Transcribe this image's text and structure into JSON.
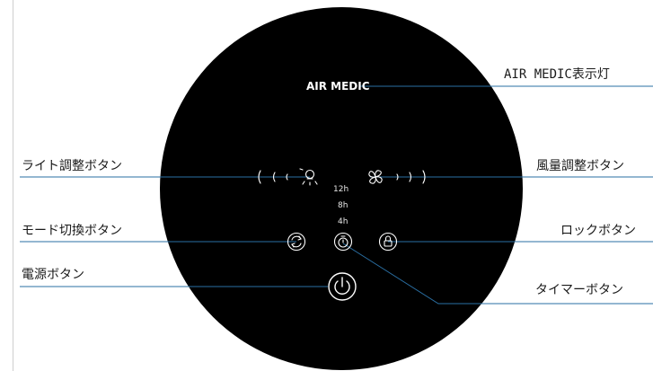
{
  "panel": {
    "brand": "AIR MEDIC",
    "timer_options": [
      "12h",
      "8h",
      "4h"
    ]
  },
  "callouts": {
    "air_medic_light": "AIR MEDIC表示灯",
    "light_button": "ライト調整ボタン",
    "fan_speed_button": "風量調整ボタン",
    "mode_button": "モード切換ボタン",
    "lock_button": "ロックボタン",
    "power_button": "電源ボタン",
    "timer_button": "タイマーボタン"
  },
  "icons": {
    "light": "light-bulb-icon",
    "fan": "fan-icon",
    "mode": "mode-cycle-icon",
    "timer": "timer-icon",
    "lock": "lock-icon",
    "power": "power-icon"
  },
  "colors": {
    "panel": "#000000",
    "leader_line": "#2a6fa3",
    "icon_stroke": "#ffffff",
    "background": "#ffffff"
  }
}
